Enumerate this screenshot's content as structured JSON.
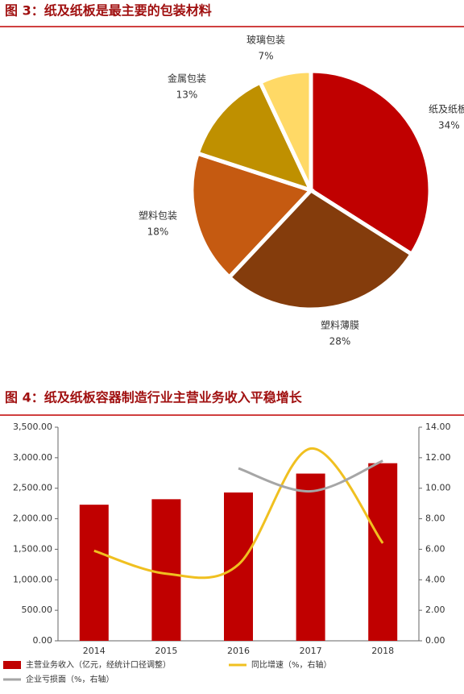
{
  "chart_data": [
    {
      "type": "pie",
      "title": "图 3：纸及纸板是最主要的包装材料",
      "categories": [
        "纸及纸板",
        "塑料薄膜",
        "塑料包装",
        "金属包装",
        "玻璃包装"
      ],
      "values": [
        34,
        28,
        18,
        13,
        7
      ],
      "value_labels": [
        "34%",
        "28%",
        "18%",
        "13%",
        "7%"
      ],
      "colors": [
        "#c00000",
        "#843c0c",
        "#c55a11",
        "#bf9000",
        "#ffd966"
      ]
    },
    {
      "type": "combo",
      "title": "图 4：纸及纸板容器制造行业主营业务收入平稳增长",
      "categories": [
        "2014",
        "2015",
        "2016",
        "2017",
        "2018"
      ],
      "series": [
        {
          "name": "主营业务收入（亿元，经统计口径调整）",
          "color": "#c00000",
          "type": "bar",
          "values": [
            2230,
            2320,
            2430,
            2740,
            2910
          ]
        },
        {
          "name": "同比增速（%，右轴）",
          "color": "#f0c020",
          "type": "line",
          "axis": "y2",
          "values": [
            5.9,
            4.4,
            5.0,
            12.6,
            6.4
          ]
        },
        {
          "name": "企业亏损面（%，右轴）",
          "color": "#a6a6a6",
          "type": "line",
          "axis": "y2",
          "values": [
            null,
            null,
            11.3,
            9.8,
            11.8
          ]
        }
      ],
      "ylim": [
        0,
        3500
      ],
      "yticks": [
        {
          "value": 0,
          "label": "0.00"
        },
        {
          "value": 500,
          "label": "500.00"
        },
        {
          "value": 1000,
          "label": "1,000.00"
        },
        {
          "value": 1500,
          "label": "1,500.00"
        },
        {
          "value": 2000,
          "label": "2,000.00"
        },
        {
          "value": 2500,
          "label": "2,500.00"
        },
        {
          "value": 3000,
          "label": "3,000.00"
        },
        {
          "value": 3500,
          "label": "3,500.00"
        }
      ],
      "y2lim": [
        0,
        14
      ],
      "y2ticks": [
        {
          "value": 0,
          "label": "0.00"
        },
        {
          "value": 2,
          "label": "2.00"
        },
        {
          "value": 4,
          "label": "4.00"
        },
        {
          "value": 6,
          "label": "6.00"
        },
        {
          "value": 8,
          "label": "8.00"
        },
        {
          "value": 10,
          "label": "10.00"
        },
        {
          "value": 12,
          "label": "12.00"
        },
        {
          "value": 14,
          "label": "14.00"
        }
      ]
    }
  ]
}
